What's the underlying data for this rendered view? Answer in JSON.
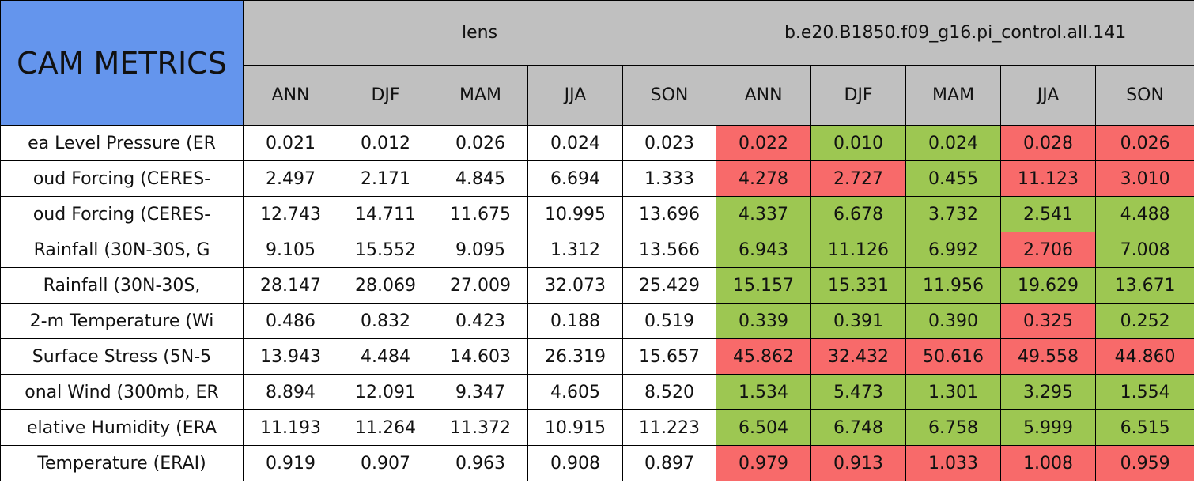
{
  "header": {
    "title": "CAM METRICS",
    "groups": [
      {
        "name": "lens",
        "columns": [
          "ANN",
          "DJF",
          "MAM",
          "JJA",
          "SON"
        ]
      },
      {
        "name": "b.e20.B1850.f09_g16.pi_control.all.141",
        "columns": [
          "ANN",
          "DJF",
          "MAM",
          "JJA",
          "SON"
        ]
      }
    ]
  },
  "table": {
    "rows": [
      {
        "label": "ea Level Pressure (ER",
        "values": [
          "0.021",
          "0.012",
          "0.026",
          "0.024",
          "0.023",
          "0.022",
          "0.010",
          "0.024",
          "0.028",
          "0.026"
        ],
        "colors": [
          "#ffffff",
          "#ffffff",
          "#ffffff",
          "#ffffff",
          "#ffffff",
          "#f86a6a",
          "#9dc752",
          "#9dc752",
          "#f86a6a",
          "#f86a6a"
        ]
      },
      {
        "label": "oud Forcing (CERES-",
        "values": [
          "2.497",
          "2.171",
          "4.845",
          "6.694",
          "1.333",
          "4.278",
          "2.727",
          "0.455",
          "11.123",
          "3.010"
        ],
        "colors": [
          "#ffffff",
          "#ffffff",
          "#ffffff",
          "#ffffff",
          "#ffffff",
          "#f86a6a",
          "#f86a6a",
          "#9dc752",
          "#f86a6a",
          "#f86a6a"
        ]
      },
      {
        "label": "oud Forcing (CERES-",
        "values": [
          "12.743",
          "14.711",
          "11.675",
          "10.995",
          "13.696",
          "4.337",
          "6.678",
          "3.732",
          "2.541",
          "4.488"
        ],
        "colors": [
          "#ffffff",
          "#ffffff",
          "#ffffff",
          "#ffffff",
          "#ffffff",
          "#9dc752",
          "#9dc752",
          "#9dc752",
          "#9dc752",
          "#9dc752"
        ]
      },
      {
        "label": "Rainfall (30N-30S, G",
        "values": [
          "9.105",
          "15.552",
          "9.095",
          "1.312",
          "13.566",
          "6.943",
          "11.126",
          "6.992",
          "2.706",
          "7.008"
        ],
        "colors": [
          "#ffffff",
          "#ffffff",
          "#ffffff",
          "#ffffff",
          "#ffffff",
          "#9dc752",
          "#9dc752",
          "#9dc752",
          "#f86a6a",
          "#9dc752"
        ]
      },
      {
        "label": "Rainfall (30N-30S,",
        "values": [
          "28.147",
          "28.069",
          "27.009",
          "32.073",
          "25.429",
          "15.157",
          "15.331",
          "11.956",
          "19.629",
          "13.671"
        ],
        "colors": [
          "#ffffff",
          "#ffffff",
          "#ffffff",
          "#ffffff",
          "#ffffff",
          "#9dc752",
          "#9dc752",
          "#9dc752",
          "#9dc752",
          "#9dc752"
        ]
      },
      {
        "label": "2-m Temperature (Wi",
        "values": [
          "0.486",
          "0.832",
          "0.423",
          "0.188",
          "0.519",
          "0.339",
          "0.391",
          "0.390",
          "0.325",
          "0.252"
        ],
        "colors": [
          "#ffffff",
          "#ffffff",
          "#ffffff",
          "#ffffff",
          "#ffffff",
          "#9dc752",
          "#9dc752",
          "#9dc752",
          "#f86a6a",
          "#9dc752"
        ]
      },
      {
        "label": "Surface Stress (5N-5",
        "values": [
          "13.943",
          "4.484",
          "14.603",
          "26.319",
          "15.657",
          "45.862",
          "32.432",
          "50.616",
          "49.558",
          "44.860"
        ],
        "colors": [
          "#ffffff",
          "#ffffff",
          "#ffffff",
          "#ffffff",
          "#ffffff",
          "#f86a6a",
          "#f86a6a",
          "#f86a6a",
          "#f86a6a",
          "#f86a6a"
        ]
      },
      {
        "label": "onal Wind (300mb, ER",
        "values": [
          "8.894",
          "12.091",
          "9.347",
          "4.605",
          "8.520",
          "1.534",
          "5.473",
          "1.301",
          "3.295",
          "1.554"
        ],
        "colors": [
          "#ffffff",
          "#ffffff",
          "#ffffff",
          "#ffffff",
          "#ffffff",
          "#9dc752",
          "#9dc752",
          "#9dc752",
          "#9dc752",
          "#9dc752"
        ]
      },
      {
        "label": "elative Humidity (ERA",
        "values": [
          "11.193",
          "11.264",
          "11.372",
          "10.915",
          "11.223",
          "6.504",
          "6.748",
          "6.758",
          "5.999",
          "6.515"
        ],
        "colors": [
          "#ffffff",
          "#ffffff",
          "#ffffff",
          "#ffffff",
          "#ffffff",
          "#9dc752",
          "#9dc752",
          "#9dc752",
          "#9dc752",
          "#9dc752"
        ]
      },
      {
        "label": "Temperature (ERAI)",
        "values": [
          "0.919",
          "0.907",
          "0.963",
          "0.908",
          "0.897",
          "0.979",
          "0.913",
          "1.033",
          "1.008",
          "0.959"
        ],
        "colors": [
          "#ffffff",
          "#ffffff",
          "#ffffff",
          "#ffffff",
          "#ffffff",
          "#f86a6a",
          "#f86a6a",
          "#f86a6a",
          "#f86a6a",
          "#f86a6a"
        ]
      }
    ]
  }
}
